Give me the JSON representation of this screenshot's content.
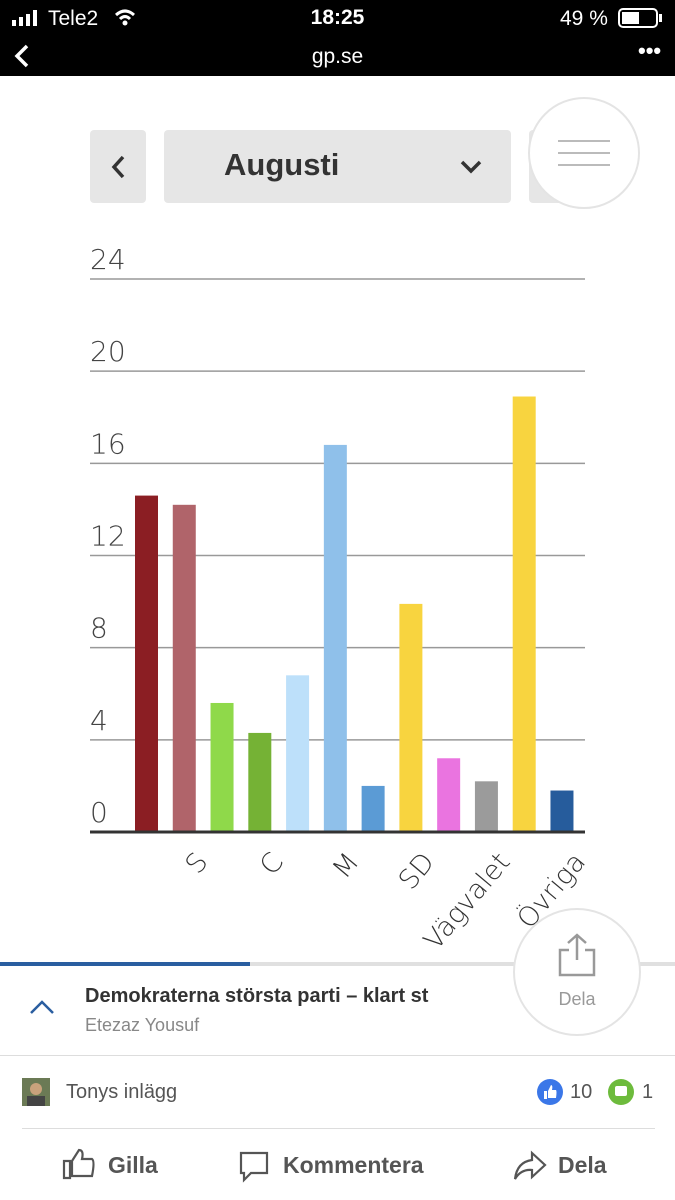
{
  "status_bar": {
    "carrier": "Tele2",
    "time": "18:25",
    "battery": "49 %"
  },
  "browser": {
    "url": "gp.se"
  },
  "month_select": {
    "label": "Augusti"
  },
  "chart_data": {
    "type": "bar",
    "categories": [
      null,
      "S",
      null,
      "C",
      null,
      "M",
      null,
      "SD",
      null,
      "Vägvalet",
      null,
      "Övriga"
    ],
    "values": [
      14.6,
      14.2,
      5.6,
      4.3,
      6.8,
      16.8,
      2.0,
      9.9,
      3.2,
      2.2,
      18.9,
      1.8
    ],
    "colors": [
      "#8b1e23",
      "#b0646a",
      "#8fd94a",
      "#75b235",
      "#bde0fa",
      "#8fc0ea",
      "#5b9bd5",
      "#f8d43f",
      "#ea74e0",
      "#9b9b9b",
      "#f8d43f",
      "#265c9c"
    ],
    "ylim": [
      0,
      24
    ],
    "yticks": [
      0,
      4,
      8,
      12,
      16,
      20,
      24
    ],
    "grid": true
  },
  "article": {
    "title": "Demokraterna största parti – klart st",
    "author": "Etezaz Yousuf",
    "share": "Dela"
  },
  "post": {
    "owner": "Tonys inlägg",
    "likes": 10,
    "comments": 1
  },
  "actions": {
    "like": "Gilla",
    "comment": "Kommentera",
    "share": "Dela"
  }
}
